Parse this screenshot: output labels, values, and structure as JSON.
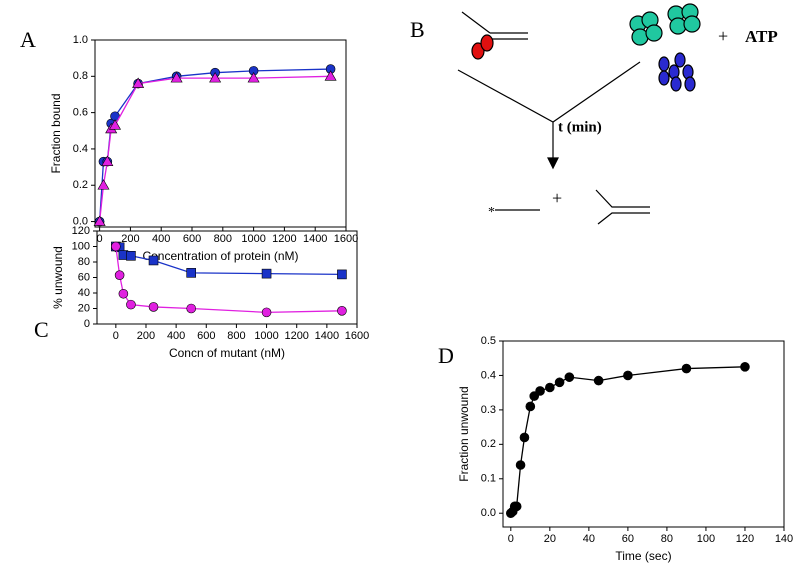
{
  "panel_labels": [
    "A",
    "B",
    "C",
    "D"
  ],
  "diagram": {
    "plus_top": "+",
    "atp": "ATP",
    "time": "t (min)",
    "star": "*",
    "plus_bottom": "+"
  },
  "chart_data": [
    {
      "type": "line",
      "x_label": "Concentration of protein (nM)",
      "y_label": "Fraction bound",
      "xlim": [
        -30,
        1600
      ],
      "ylim": [
        -0.03,
        1.0
      ],
      "xticks": [
        0,
        200,
        400,
        600,
        800,
        1000,
        1200,
        1400,
        1600
      ],
      "yticks": [
        {
          "value": 0,
          "label": "0.0"
        },
        0.2,
        0.4,
        0.6,
        0.8,
        {
          "value": 1,
          "label": "1.0"
        }
      ],
      "series": [
        {
          "color": "#1a33c8",
          "marker": "circle",
          "x": [
            0,
            25,
            50,
            75,
            100,
            250,
            500,
            750,
            1000,
            1500
          ],
          "values": [
            0,
            0.33,
            0.33,
            0.54,
            0.58,
            0.76,
            0.8,
            0.82,
            0.83,
            0.84
          ]
        },
        {
          "color": "#e020e0",
          "marker": "triangle",
          "x": [
            0,
            25,
            50,
            75,
            100,
            250,
            500,
            750,
            1000,
            1500
          ],
          "values": [
            0,
            0.2,
            0.33,
            0.51,
            0.53,
            0.76,
            0.79,
            0.79,
            0.79,
            0.8
          ]
        }
      ]
    },
    {
      "type": "line",
      "x_label": "Concn of mutant (nM)",
      "y_label": "% unwound",
      "xlim": [
        -125,
        1600
      ],
      "ylim": [
        0,
        120
      ],
      "xticks": [
        0,
        200,
        400,
        600,
        800,
        1000,
        1200,
        1400,
        1600
      ],
      "yticks": [
        0,
        20,
        40,
        60,
        80,
        100,
        120
      ],
      "series": [
        {
          "color": "#1a33c8",
          "marker": "square",
          "x": [
            0,
            25,
            50,
            100,
            250,
            500,
            1000,
            1500
          ],
          "values": [
            100,
            99,
            89,
            88,
            82,
            66,
            65,
            64
          ]
        },
        {
          "color": "#e020e0",
          "marker": "circle",
          "x": [
            0,
            25,
            50,
            100,
            250,
            500,
            1000,
            1500
          ],
          "values": [
            100,
            63,
            39,
            25,
            22,
            20,
            15,
            17
          ]
        }
      ]
    },
    {
      "type": "line",
      "x_label": "Time (sec)",
      "y_label": "Fraction unwound",
      "xlim": [
        -4,
        140
      ],
      "ylim": [
        -0.04,
        0.5
      ],
      "xticks": [
        0,
        20,
        40,
        60,
        80,
        100,
        120,
        140
      ],
      "yticks": [
        {
          "value": 0,
          "label": "0.0"
        },
        0.1,
        0.2,
        0.3,
        0.4,
        0.5
      ],
      "series": [
        {
          "color": "#000000",
          "marker": "circle",
          "x": [
            0,
            1,
            2,
            3,
            5,
            7,
            10,
            12,
            15,
            20,
            25,
            30,
            45,
            60,
            90,
            120
          ],
          "values": [
            0,
            0.005,
            0.02,
            0.02,
            0.14,
            0.22,
            0.31,
            0.34,
            0.355,
            0.365,
            0.38,
            0.395,
            0.385,
            0.4,
            0.42,
            0.425
          ]
        }
      ]
    }
  ]
}
